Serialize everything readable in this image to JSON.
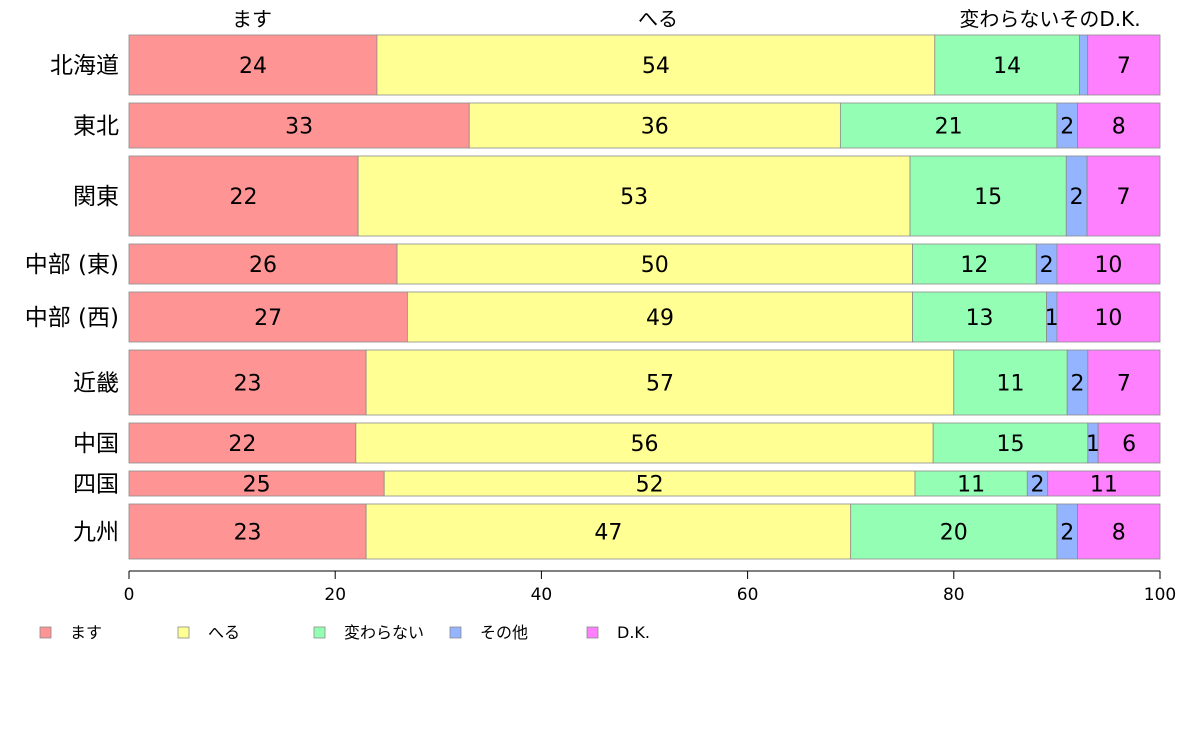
{
  "chart_data": {
    "type": "bar",
    "orientation": "horizontal",
    "stacked": true,
    "categories": [
      "北海道",
      "東北",
      "関東",
      "中部 (東)",
      "中部 (西)",
      "近畿",
      "中国",
      "四国",
      "九州"
    ],
    "series": [
      {
        "name": "ます",
        "color": "#ff9494",
        "values": [
          24,
          33,
          22,
          26,
          27,
          23,
          22,
          25,
          23
        ]
      },
      {
        "name": "へる",
        "color": "#ffff94",
        "values": [
          54,
          36,
          53,
          50,
          49,
          57,
          56,
          52,
          47
        ]
      },
      {
        "name": "変わらない",
        "color": "#94ffb4",
        "values": [
          14,
          21,
          15,
          12,
          13,
          11,
          15,
          11,
          20
        ]
      },
      {
        "name": "その他",
        "color": "#94b4ff",
        "values": [
          0.8,
          2,
          2,
          2,
          1,
          2,
          1,
          2,
          2
        ]
      },
      {
        "name": "D.K.",
        "color": "#ff80ff",
        "values": [
          7,
          8,
          7,
          10,
          10,
          7,
          6,
          11,
          8
        ]
      }
    ],
    "segment_labels": [
      [
        "24",
        "54",
        "14",
        "",
        "7"
      ],
      [
        "33",
        "36",
        "21",
        "2",
        "8"
      ],
      [
        "22",
        "53",
        "15",
        "2",
        "7"
      ],
      [
        "26",
        "50",
        "12",
        "2",
        "10"
      ],
      [
        "27",
        "49",
        "13",
        "1",
        "10"
      ],
      [
        "23",
        "57",
        "11",
        "2",
        "7"
      ],
      [
        "22",
        "56",
        "15",
        "1",
        "6"
      ],
      [
        "25",
        "52",
        "11",
        "2",
        "11"
      ],
      [
        "23",
        "47",
        "20",
        "2",
        "8"
      ]
    ],
    "row_weights": [
      12,
      9,
      16,
      8,
      10,
      13,
      8,
      5,
      11
    ],
    "top_labels": [
      "ます",
      "へる",
      "変わらないそのD.K."
    ],
    "xlim": [
      0,
      100
    ],
    "xticks": [
      0,
      20,
      40,
      60,
      80,
      100
    ],
    "legend": {
      "placement": "bottom",
      "items": [
        "ます",
        "へる",
        "変わらない",
        "その他",
        "D.K."
      ]
    },
    "grid": false
  }
}
